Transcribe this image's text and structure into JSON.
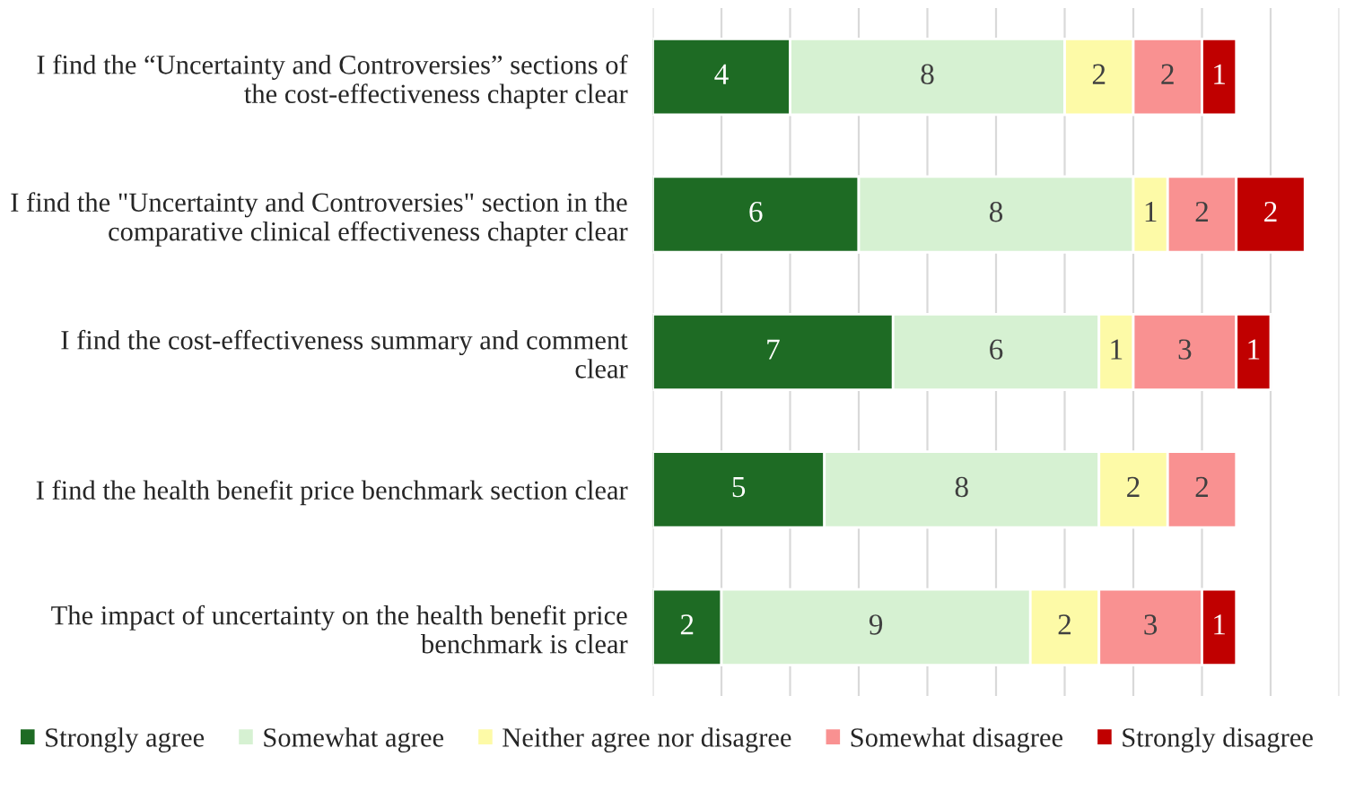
{
  "chart_data": {
    "type": "bar",
    "orientation": "horizontal",
    "stacked": true,
    "data_labels": true,
    "categories": [
      "I find the “Uncertainty and Controversies” sections of the cost-effectiveness chapter clear",
      "I find the \"Uncertainty and Controversies\" section in the comparative clinical effectiveness chapter clear",
      "I find the cost-effectiveness summary and comment clear",
      "I find the health benefit price benchmark section clear",
      "The impact of uncertainty on the health benefit price benchmark is clear"
    ],
    "series": [
      {
        "name": "Strongly agree",
        "color": "#1e6b24",
        "values": [
          4,
          6,
          7,
          5,
          2
        ]
      },
      {
        "name": "Somewhat agree",
        "color": "#d6f1d2",
        "values": [
          8,
          8,
          6,
          8,
          9
        ]
      },
      {
        "name": "Neither agree nor disagree",
        "color": "#fdfaa7",
        "values": [
          2,
          1,
          1,
          2,
          2
        ]
      },
      {
        "name": "Somewhat disagree",
        "color": "#f99191",
        "values": [
          2,
          2,
          3,
          2,
          3
        ]
      },
      {
        "name": "Strongly disagree",
        "color": "#c00000",
        "values": [
          1,
          2,
          1,
          null,
          1
        ]
      }
    ],
    "xlim": [
      0,
      20
    ],
    "xticks": [
      {
        "value": 0,
        "label": null
      },
      {
        "value": 2,
        "label": null
      },
      {
        "value": 4,
        "label": null
      },
      {
        "value": 6,
        "label": null
      },
      {
        "value": 8,
        "label": null
      },
      {
        "value": 10,
        "label": null
      },
      {
        "value": 12,
        "label": null
      },
      {
        "value": 14,
        "label": null
      },
      {
        "value": 16,
        "label": null
      },
      {
        "value": 18,
        "label": null
      },
      {
        "value": 20,
        "label": null
      }
    ],
    "tick_labels": "y",
    "grid": "x",
    "legend": "bottom"
  }
}
